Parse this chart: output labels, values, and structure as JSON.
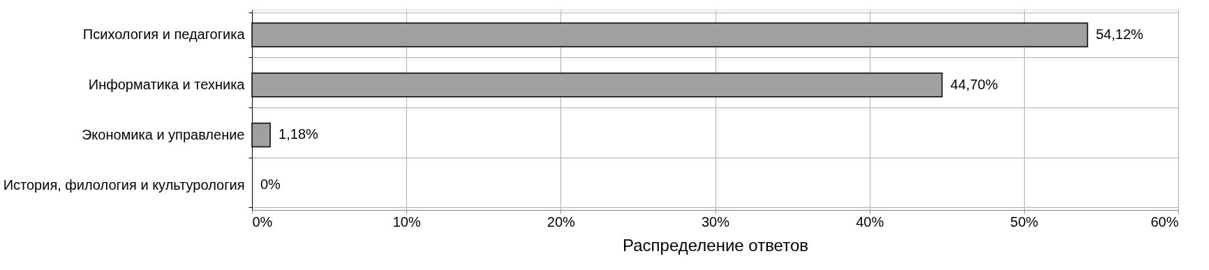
{
  "chart_data": {
    "type": "bar",
    "orientation": "horizontal",
    "xlabel": "Распределение ответов",
    "categories": [
      "Психология и педагогика",
      "Информатика и техника",
      "Экономика и управление",
      "История, филология и культурология"
    ],
    "values": [
      54.12,
      44.7,
      1.18,
      0
    ],
    "value_labels": [
      "54,12%",
      "44,70%",
      "1,18%",
      "0%"
    ],
    "color": "#a0a0a0",
    "xlim": [
      0,
      60
    ],
    "xticks": [
      {
        "value": 0,
        "label": "0%"
      },
      {
        "value": 10,
        "label": "10%"
      },
      {
        "value": 20,
        "label": "20%"
      },
      {
        "value": 30,
        "label": "30%"
      },
      {
        "value": 40,
        "label": "40%"
      },
      {
        "value": 50,
        "label": "50%"
      },
      {
        "value": 60,
        "label": "60%"
      }
    ],
    "grid": true
  }
}
